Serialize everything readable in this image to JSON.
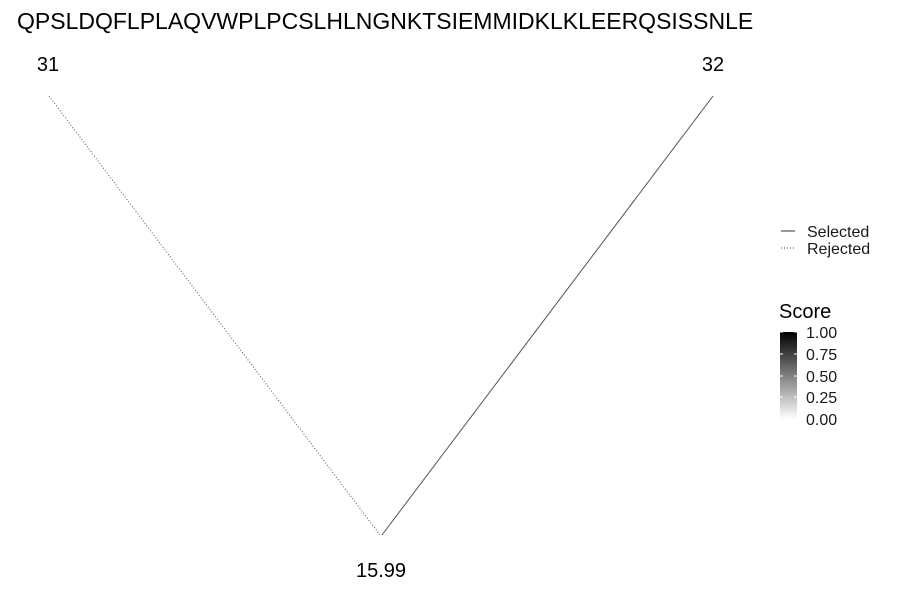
{
  "sequence": "QPSLDQFLPLAQVWPLPCSLHLNGNKTSIEMMIDKLKLEERQSISSNLE",
  "nodes": {
    "left": {
      "label": "31"
    },
    "right": {
      "label": "32"
    },
    "bottom": {
      "label": "15.99"
    }
  },
  "edges": [
    {
      "from": "left",
      "to": "bottom",
      "status": "Rejected",
      "style": "dotted"
    },
    {
      "from": "right",
      "to": "bottom",
      "status": "Selected",
      "style": "solid"
    }
  ],
  "line_legend": {
    "items": [
      {
        "label": "Selected",
        "style": "solid"
      },
      {
        "label": "Rejected",
        "style": "dotted"
      }
    ]
  },
  "score_legend": {
    "title": "Score",
    "ticks": [
      "1.00",
      "0.75",
      "0.50",
      "0.25",
      "0.00"
    ],
    "colors": {
      "high": "#000000",
      "low": "#ffffff"
    }
  }
}
